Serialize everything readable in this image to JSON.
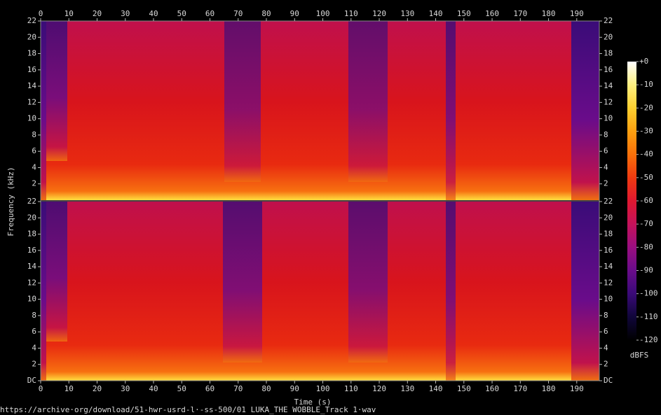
{
  "chart_data": {
    "type": "spectrogram",
    "xlabel": "Time (s)",
    "ylabel": "Frequency (kHz)",
    "xlim": [
      0,
      198
    ],
    "xticks": [
      0,
      10,
      20,
      30,
      40,
      50,
      60,
      70,
      80,
      90,
      100,
      110,
      120,
      130,
      140,
      150,
      160,
      170,
      180,
      190
    ],
    "channels": [
      {
        "ylim": [
          0,
          22
        ],
        "yticks": [
          2,
          4,
          6,
          8,
          10,
          12,
          14,
          16,
          18,
          20,
          22
        ]
      },
      {
        "ylim": [
          0,
          22
        ],
        "yticks": [
          {
            "value": 0,
            "label": "DC"
          },
          2,
          4,
          6,
          8,
          10,
          12,
          14,
          16,
          18,
          20,
          22
        ]
      }
    ],
    "colorbar": {
      "label": "dBFS",
      "clim": [
        -120,
        0
      ],
      "ticks": [
        {
          "value": 0,
          "label": "+0"
        },
        -10,
        -20,
        -30,
        -40,
        -50,
        -60,
        -70,
        -80,
        -90,
        -100,
        -110,
        -120
      ],
      "colormap": [
        "#000000",
        "#10063a",
        "#3a0a78",
        "#6a0c8a",
        "#9a0e80",
        "#c4125a",
        "#e01830",
        "#f03a10",
        "#f8700a",
        "#fca010",
        "#fdd030",
        "#fef080",
        "#ffffff"
      ]
    },
    "caption": "https://archive·org/download/51-hwr-usrd-l·-ss-500/01 LUKA_THE WOBBLE_Track 1·wav"
  }
}
